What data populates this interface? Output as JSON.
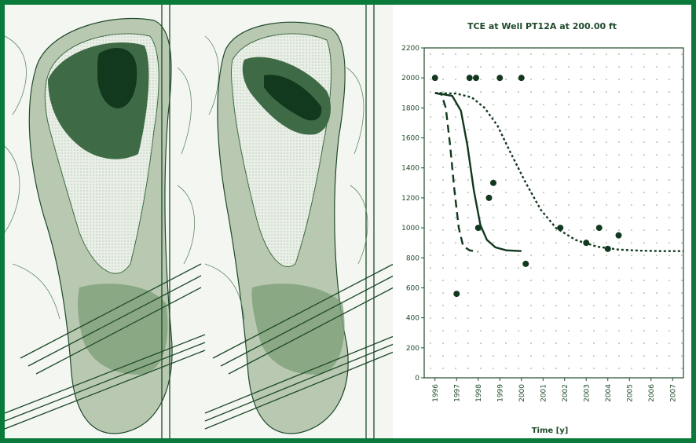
{
  "colors": {
    "border": "#0a7a3a",
    "plume_light": "#b9c9b1",
    "plume_mid": "#7fa07a",
    "plume_dark": "#3e6b46",
    "plume_core": "#12381e",
    "line": "#1e4a2a"
  },
  "maps": [
    {
      "name": "left-plume-map"
    },
    {
      "name": "right-plume-map"
    }
  ],
  "chart_data": {
    "type": "line",
    "title": "TCE at Well PT12A at 200.00 ft",
    "xlabel": "Time [y]",
    "ylabel": "",
    "x_ticks": [
      "1996",
      "1997",
      "1998",
      "1999",
      "2000",
      "2001",
      "2002",
      "2003",
      "2004",
      "2005",
      "2006",
      "2007"
    ],
    "y_ticks": [
      "0",
      "200",
      "400",
      "600",
      "800",
      "1000",
      "1200",
      "1400",
      "1600",
      "1800",
      "2000",
      "2200"
    ],
    "xlim": [
      1995.5,
      2007.5
    ],
    "ylim": [
      0,
      2200
    ],
    "grid": true,
    "series": [
      {
        "style": "dashed",
        "x": [
          1996.0,
          1996.3,
          1996.5,
          1996.7,
          1996.9,
          1997.1,
          1997.3,
          1997.6,
          1998.0
        ],
        "y": [
          1900,
          1890,
          1800,
          1550,
          1250,
          1000,
          880,
          850,
          840
        ]
      },
      {
        "style": "solid",
        "x": [
          1996.0,
          1996.8,
          1997.2,
          1997.5,
          1997.8,
          1998.1,
          1998.4,
          1998.8,
          1999.3,
          2000.0
        ],
        "y": [
          1900,
          1880,
          1780,
          1550,
          1250,
          1020,
          920,
          870,
          850,
          845
        ]
      },
      {
        "style": "dotted",
        "x": [
          1996.0,
          1997.0,
          1997.7,
          1998.3,
          1998.9,
          1999.5,
          2000.2,
          2000.9,
          2001.6,
          2002.5,
          2003.5,
          2004.5,
          2005.5,
          2006.5,
          2007.5
        ],
        "y": [
          1900,
          1895,
          1870,
          1800,
          1680,
          1500,
          1300,
          1120,
          1000,
          920,
          875,
          855,
          848,
          845,
          845
        ]
      },
      {
        "style": "points",
        "x": [
          1996.0,
          1997.0,
          1997.6,
          1997.9,
          1998.0,
          1998.5,
          1998.7,
          1999.0,
          2000.0,
          2000.2,
          2001.8,
          2003.0,
          2003.6,
          2004.0,
          2004.5
        ],
        "y": [
          2000,
          560,
          2000,
          2000,
          1000,
          1200,
          1300,
          2000,
          2000,
          760,
          1000,
          900,
          1000,
          860,
          950
        ]
      }
    ]
  }
}
